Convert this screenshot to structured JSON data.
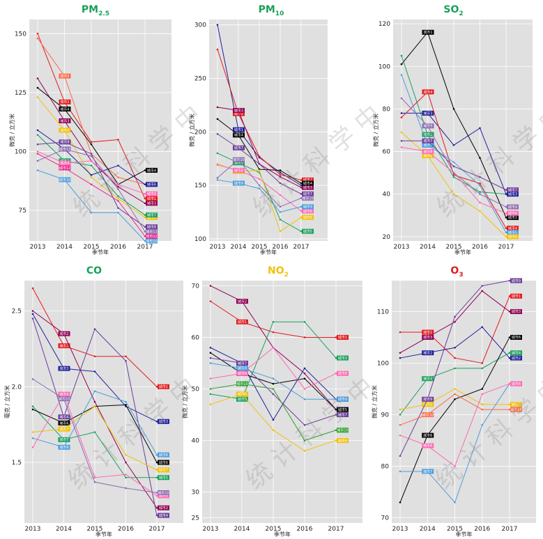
{
  "watermark": "统 计 科 学 中",
  "chart_data": [
    {
      "type": "line",
      "title": "PM",
      "title_sub": "2.5",
      "title_color": "#1aa05a",
      "ylabel": "微克 / 立方米",
      "xlabel": "季节年",
      "x": [
        "2013",
        "2014",
        "2015",
        "2016",
        "2017"
      ],
      "ylim": [
        62,
        156
      ],
      "yticks": [
        "75",
        "100",
        "125",
        "150"
      ],
      "series": [
        {
          "name": "城市1",
          "color": "#e31a1c",
          "values": [
            150,
            121,
            104,
            105,
            80
          ]
        },
        {
          "name": "城市2",
          "color": "#fb6a4a",
          "values": [
            148,
            132,
            99,
            89,
            86
          ]
        },
        {
          "name": "城市3",
          "color": "#8e0152",
          "values": [
            131,
            113,
            96,
            85,
            78
          ]
        },
        {
          "name": "城市4",
          "color": "#000000",
          "values": [
            127,
            118,
            103,
            86,
            92
          ]
        },
        {
          "name": "城市5",
          "color": "#f0c20a",
          "values": [
            123,
            109,
            89,
            80,
            72
          ]
        },
        {
          "name": "城市6",
          "color": "#1f1f9a",
          "values": [
            109,
            101,
            90,
            94,
            86
          ]
        },
        {
          "name": "城市7",
          "color": "#1aa05a",
          "values": [
            107,
            96,
            94,
            81,
            73
          ]
        },
        {
          "name": "城市8",
          "color": "#6a3d9a",
          "values": [
            103,
            104,
            99,
            76,
            68
          ]
        },
        {
          "name": "城市9",
          "color": "#ff69b4",
          "values": [
            100,
            95,
            96,
            86,
            82
          ]
        },
        {
          "name": "城市10",
          "color": "#4d9ddd",
          "values": [
            92,
            88,
            74,
            74,
            62
          ]
        },
        {
          "name": "城市11",
          "color": "#8c6bb1",
          "values": [
            96,
            101,
            98,
            84,
            66
          ]
        },
        {
          "name": "城市12",
          "color": "#e7298a",
          "values": [
            99,
            93,
            86,
            79,
            64
          ]
        }
      ]
    },
    {
      "type": "line",
      "title": "PM",
      "title_sub": "10",
      "title_color": "#1aa05a",
      "ylabel": "微克 / 立方米",
      "xlabel": "季节年",
      "x": [
        "2013",
        "2014",
        "2015",
        "2016",
        "2017"
      ],
      "ylim": [
        98,
        305
      ],
      "yticks": [
        "100",
        "150",
        "200",
        "250",
        "300"
      ],
      "series": [
        {
          "name": "城市1",
          "color": "#1f1f9a",
          "values": [
            300,
            202,
            176,
            162,
            150
          ]
        },
        {
          "name": "城市2",
          "color": "#e31a1c",
          "values": [
            277,
            217,
            177,
            160,
            155
          ]
        },
        {
          "name": "城市3",
          "color": "#8e0152",
          "values": [
            223,
            220,
            170,
            158,
            148
          ]
        },
        {
          "name": "城市4",
          "color": "#000000",
          "values": [
            212,
            197,
            165,
            164,
            152
          ]
        },
        {
          "name": "城市5",
          "color": "#1aa05a",
          "values": [
            180,
            171,
            162,
            118,
            107
          ]
        },
        {
          "name": "城市6",
          "color": "#f0c20a",
          "values": [
            170,
            163,
            164,
            107,
            120
          ]
        },
        {
          "name": "城市7",
          "color": "#6a3d9a",
          "values": [
            198,
            185,
            170,
            152,
            142
          ]
        },
        {
          "name": "城市8",
          "color": "#ff69b4",
          "values": [
            169,
            164,
            156,
            141,
            126
          ]
        },
        {
          "name": "城市9",
          "color": "#4d9ddd",
          "values": [
            155,
            152,
            147,
            125,
            130
          ]
        },
        {
          "name": "城市10",
          "color": "#8c6bb1",
          "values": [
            157,
            174,
            150,
            130,
            138
          ]
        }
      ]
    },
    {
      "type": "line",
      "title": "SO",
      "title_sub": "2",
      "title_color": "#1aa05a",
      "ylabel": "微克 / 立方米",
      "xlabel": "季节年",
      "x": [
        "2013",
        "2014",
        "2015",
        "2016",
        "2017"
      ],
      "ylim": [
        18,
        122
      ],
      "yticks": [
        "20",
        "40",
        "60",
        "80",
        "100",
        "120"
      ],
      "series": [
        {
          "name": "城市1",
          "color": "#000000",
          "values": [
            101,
            116,
            80,
            57,
            29
          ]
        },
        {
          "name": "城市2",
          "color": "#1aa05a",
          "values": [
            105,
            68,
            48,
            41,
            40
          ]
        },
        {
          "name": "城市3",
          "color": "#1f1f9a",
          "values": [
            78,
            78,
            63,
            71,
            40
          ]
        },
        {
          "name": "城市4",
          "color": "#e31a1c",
          "values": [
            76,
            88,
            49,
            45,
            24
          ]
        },
        {
          "name": "城市5",
          "color": "#4d9ddd",
          "values": [
            96,
            63,
            55,
            44,
            22
          ]
        },
        {
          "name": "城市6",
          "color": "#f0c20a",
          "values": [
            69,
            58,
            40,
            32,
            20
          ]
        },
        {
          "name": "城市7",
          "color": "#6a3d9a",
          "values": [
            65,
            65,
            53,
            48,
            42
          ]
        },
        {
          "name": "城市8",
          "color": "#ff69b4",
          "values": [
            62,
            60,
            50,
            36,
            31
          ]
        },
        {
          "name": "城市9",
          "color": "#8c6bb1",
          "values": [
            85,
            72,
            50,
            40,
            34
          ]
        }
      ]
    },
    {
      "type": "line",
      "title": "CO",
      "title_sub": "",
      "title_color": "#1aa05a",
      "ylabel": "毫克 / 立方米",
      "xlabel": "季节年",
      "x": [
        "2013",
        "2014",
        "2015",
        "2016",
        "2017"
      ],
      "ylim": [
        1.1,
        2.7
      ],
      "yticks": [
        "1.5",
        "2.0",
        "2.5"
      ],
      "series": [
        {
          "name": "城市1",
          "color": "#e31a1c",
          "values": [
            2.65,
            2.27,
            2.2,
            2.2,
            2.0
          ]
        },
        {
          "name": "城市2",
          "color": "#8e0152",
          "values": [
            2.5,
            2.35,
            1.9,
            1.5,
            1.2
          ]
        },
        {
          "name": "城市3",
          "color": "#1f1f9a",
          "values": [
            2.48,
            2.12,
            2.1,
            1.87,
            1.77
          ]
        },
        {
          "name": "城市4",
          "color": "#6a3d9a",
          "values": [
            2.45,
            1.8,
            2.38,
            2.17,
            1.15
          ]
        },
        {
          "name": "城市5",
          "color": "#1aa05a",
          "values": [
            1.87,
            1.65,
            1.7,
            1.4,
            1.4
          ]
        },
        {
          "name": "城市6",
          "color": "#000000",
          "values": [
            1.85,
            1.76,
            1.87,
            1.88,
            1.5
          ]
        },
        {
          "name": "城市7",
          "color": "#f0c20a",
          "values": [
            1.7,
            1.72,
            1.87,
            1.55,
            1.45
          ]
        },
        {
          "name": "城市8",
          "color": "#4d9ddd",
          "values": [
            1.66,
            1.6,
            1.97,
            1.9,
            1.55
          ]
        },
        {
          "name": "城市9",
          "color": "#ff69b4",
          "values": [
            1.6,
            1.95,
            1.4,
            1.42,
            1.28
          ]
        },
        {
          "name": "城市10",
          "color": "#8c6bb1",
          "values": [
            2.05,
            1.92,
            1.37,
            1.33,
            1.3
          ]
        }
      ]
    },
    {
      "type": "line",
      "title": "NO",
      "title_sub": "2",
      "title_color": "#f0c20a",
      "ylabel": "微克 / 立方米",
      "xlabel": "季节年",
      "x": [
        "2013",
        "2014",
        "2015",
        "2016",
        "2017"
      ],
      "ylim": [
        24,
        71
      ],
      "yticks": [
        "25",
        "30",
        "40",
        "50",
        "60",
        "70"
      ],
      "series": [
        {
          "name": "城市1",
          "color": "#e31a1c",
          "values": [
            67,
            63,
            61,
            60,
            60
          ]
        },
        {
          "name": "城市2",
          "color": "#8e0152",
          "values": [
            70,
            67,
            58,
            53,
            46
          ]
        },
        {
          "name": "城市3",
          "color": "#1aa05a",
          "values": [
            49,
            48,
            63,
            63,
            56
          ]
        },
        {
          "name": "城市4",
          "color": "#1f1f9a",
          "values": [
            58,
            55,
            44,
            54,
            48
          ]
        },
        {
          "name": "城市5",
          "color": "#000000",
          "values": [
            57,
            53,
            51,
            52,
            46
          ]
        },
        {
          "name": "城市6",
          "color": "#f0c20a",
          "values": [
            47,
            49,
            42,
            38,
            40
          ]
        },
        {
          "name": "城市7",
          "color": "#6a3d9a",
          "values": [
            56,
            55,
            49,
            43,
            45
          ]
        },
        {
          "name": "城市8",
          "color": "#ff69b4",
          "values": [
            52,
            53,
            58,
            50,
            53
          ]
        },
        {
          "name": "城市9",
          "color": "#4d9ddd",
          "values": [
            55,
            54,
            52,
            48,
            48
          ]
        },
        {
          "name": "城市10",
          "color": "#2ca02c",
          "values": [
            50,
            51,
            50,
            40,
            42
          ]
        }
      ]
    },
    {
      "type": "line",
      "title": "O",
      "title_sub": "3",
      "title_color": "#e31a1c",
      "ylabel": "微克 / 立方米",
      "xlabel": "季节年",
      "x": [
        "2013",
        "2014",
        "2015",
        "2016",
        "2017"
      ],
      "ylim": [
        69,
        116
      ],
      "yticks": [
        "70",
        "80",
        "90",
        "100",
        "110"
      ],
      "series": [
        {
          "name": "城市1",
          "color": "#e31a1c",
          "values": [
            106,
            106,
            101,
            100,
            113
          ]
        },
        {
          "name": "城市2",
          "color": "#1f1f9a",
          "values": [
            101,
            102,
            103,
            107,
            101
          ]
        },
        {
          "name": "城市3",
          "color": "#8e0152",
          "values": [
            102,
            105,
            108,
            114,
            110
          ]
        },
        {
          "name": "城市4",
          "color": "#1aa05a",
          "values": [
            90,
            97,
            99,
            99,
            102
          ]
        },
        {
          "name": "城市5",
          "color": "#f0c20a",
          "values": [
            91,
            92,
            95,
            92,
            92
          ]
        },
        {
          "name": "城市6",
          "color": "#000000",
          "values": [
            73,
            86,
            93,
            95,
            105
          ]
        },
        {
          "name": "城市7",
          "color": "#4d9ddd",
          "values": [
            79,
            79,
            73,
            88,
            96
          ]
        },
        {
          "name": "城市8",
          "color": "#ff69b4",
          "values": [
            86,
            84,
            80,
            94,
            96
          ]
        },
        {
          "name": "城市9",
          "color": "#6a3d9a",
          "values": [
            82,
            93,
            109,
            115,
            116
          ]
        },
        {
          "name": "城市10",
          "color": "#fb6a4a",
          "values": [
            88,
            90,
            94,
            91,
            91
          ]
        }
      ]
    }
  ]
}
